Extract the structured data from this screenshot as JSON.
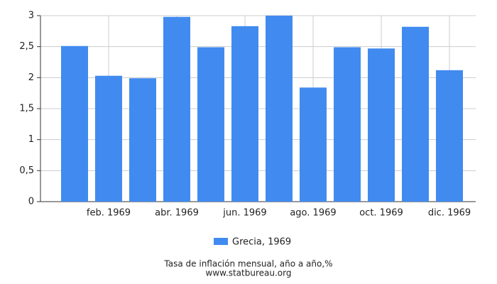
{
  "chart_data": {
    "type": "bar",
    "categories": [
      null,
      "feb. 1969",
      null,
      "abr. 1969",
      null,
      "jun. 1969",
      null,
      "ago. 1969",
      null,
      "oct. 1969",
      null,
      "dic. 1969"
    ],
    "series": [
      {
        "name": "Grecia, 1969",
        "color": "#418bf0",
        "values": [
          2.51,
          2.03,
          1.99,
          2.98,
          2.49,
          2.83,
          3.0,
          1.84,
          2.49,
          2.47,
          2.82,
          2.12
        ]
      }
    ],
    "ylim": [
      0,
      3
    ],
    "yticks": [
      0,
      {
        "value": 0.5,
        "label": "0,5"
      },
      1,
      {
        "value": 1.5,
        "label": "1,5"
      },
      2,
      {
        "value": 2.5,
        "label": "2,5"
      },
      3
    ],
    "grid": true,
    "footer": [
      "Tasa de inflación mensual, año a año,%",
      "www.statbureau.org"
    ]
  }
}
